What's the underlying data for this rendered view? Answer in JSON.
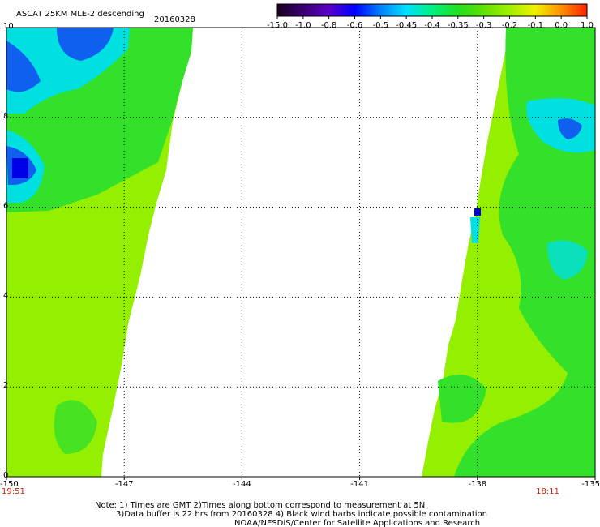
{
  "header": {
    "title": "ASCAT 25KM MLE-2 descending",
    "date": "20160328"
  },
  "colorbar": {
    "labels": [
      "-15.0",
      "-1.0",
      "-0.8",
      "-0.6",
      "-0.5",
      "-0.45",
      "-0.4",
      "-0.35",
      "-0.3",
      "-0.2",
      "-0.1",
      "0.0",
      "1.0"
    ],
    "stops": [
      "#1a0020",
      "#3a0070",
      "#5a00c8",
      "#0000ff",
      "#0080ff",
      "#00e0ff",
      "#00f080",
      "#20e020",
      "#60e000",
      "#a0f000",
      "#f0f000",
      "#ff9000",
      "#ff2000"
    ]
  },
  "map": {
    "lon_ticks": [
      "-150",
      "-147",
      "-144",
      "-141",
      "-138",
      "-135"
    ],
    "lat_ticks": [
      "0",
      "2",
      "4",
      "6",
      "8",
      "10"
    ],
    "lon_range": [
      -150,
      -135
    ],
    "lat_range": [
      0,
      10
    ],
    "grid": true,
    "times": [
      {
        "text": "19:51",
        "lon": -150
      },
      {
        "text": "18:11",
        "lon": -136.3
      }
    ],
    "colors": {
      "base": "#94f000",
      "mid": "#33e02a",
      "cyan": "#00e0e0",
      "blue": "#1060f0",
      "deep": "#0000e6"
    }
  },
  "notes": {
    "line1": "Note: 1) Times are GMT 2)Times along bottom correspond to measurement at 5N",
    "line2": "3)Data buffer is 22 hrs from 20160328 4) Black wind barbs indicate possible contamination",
    "line3": "NOAA/NESDIS/Center for Satellite Applications and Research"
  }
}
